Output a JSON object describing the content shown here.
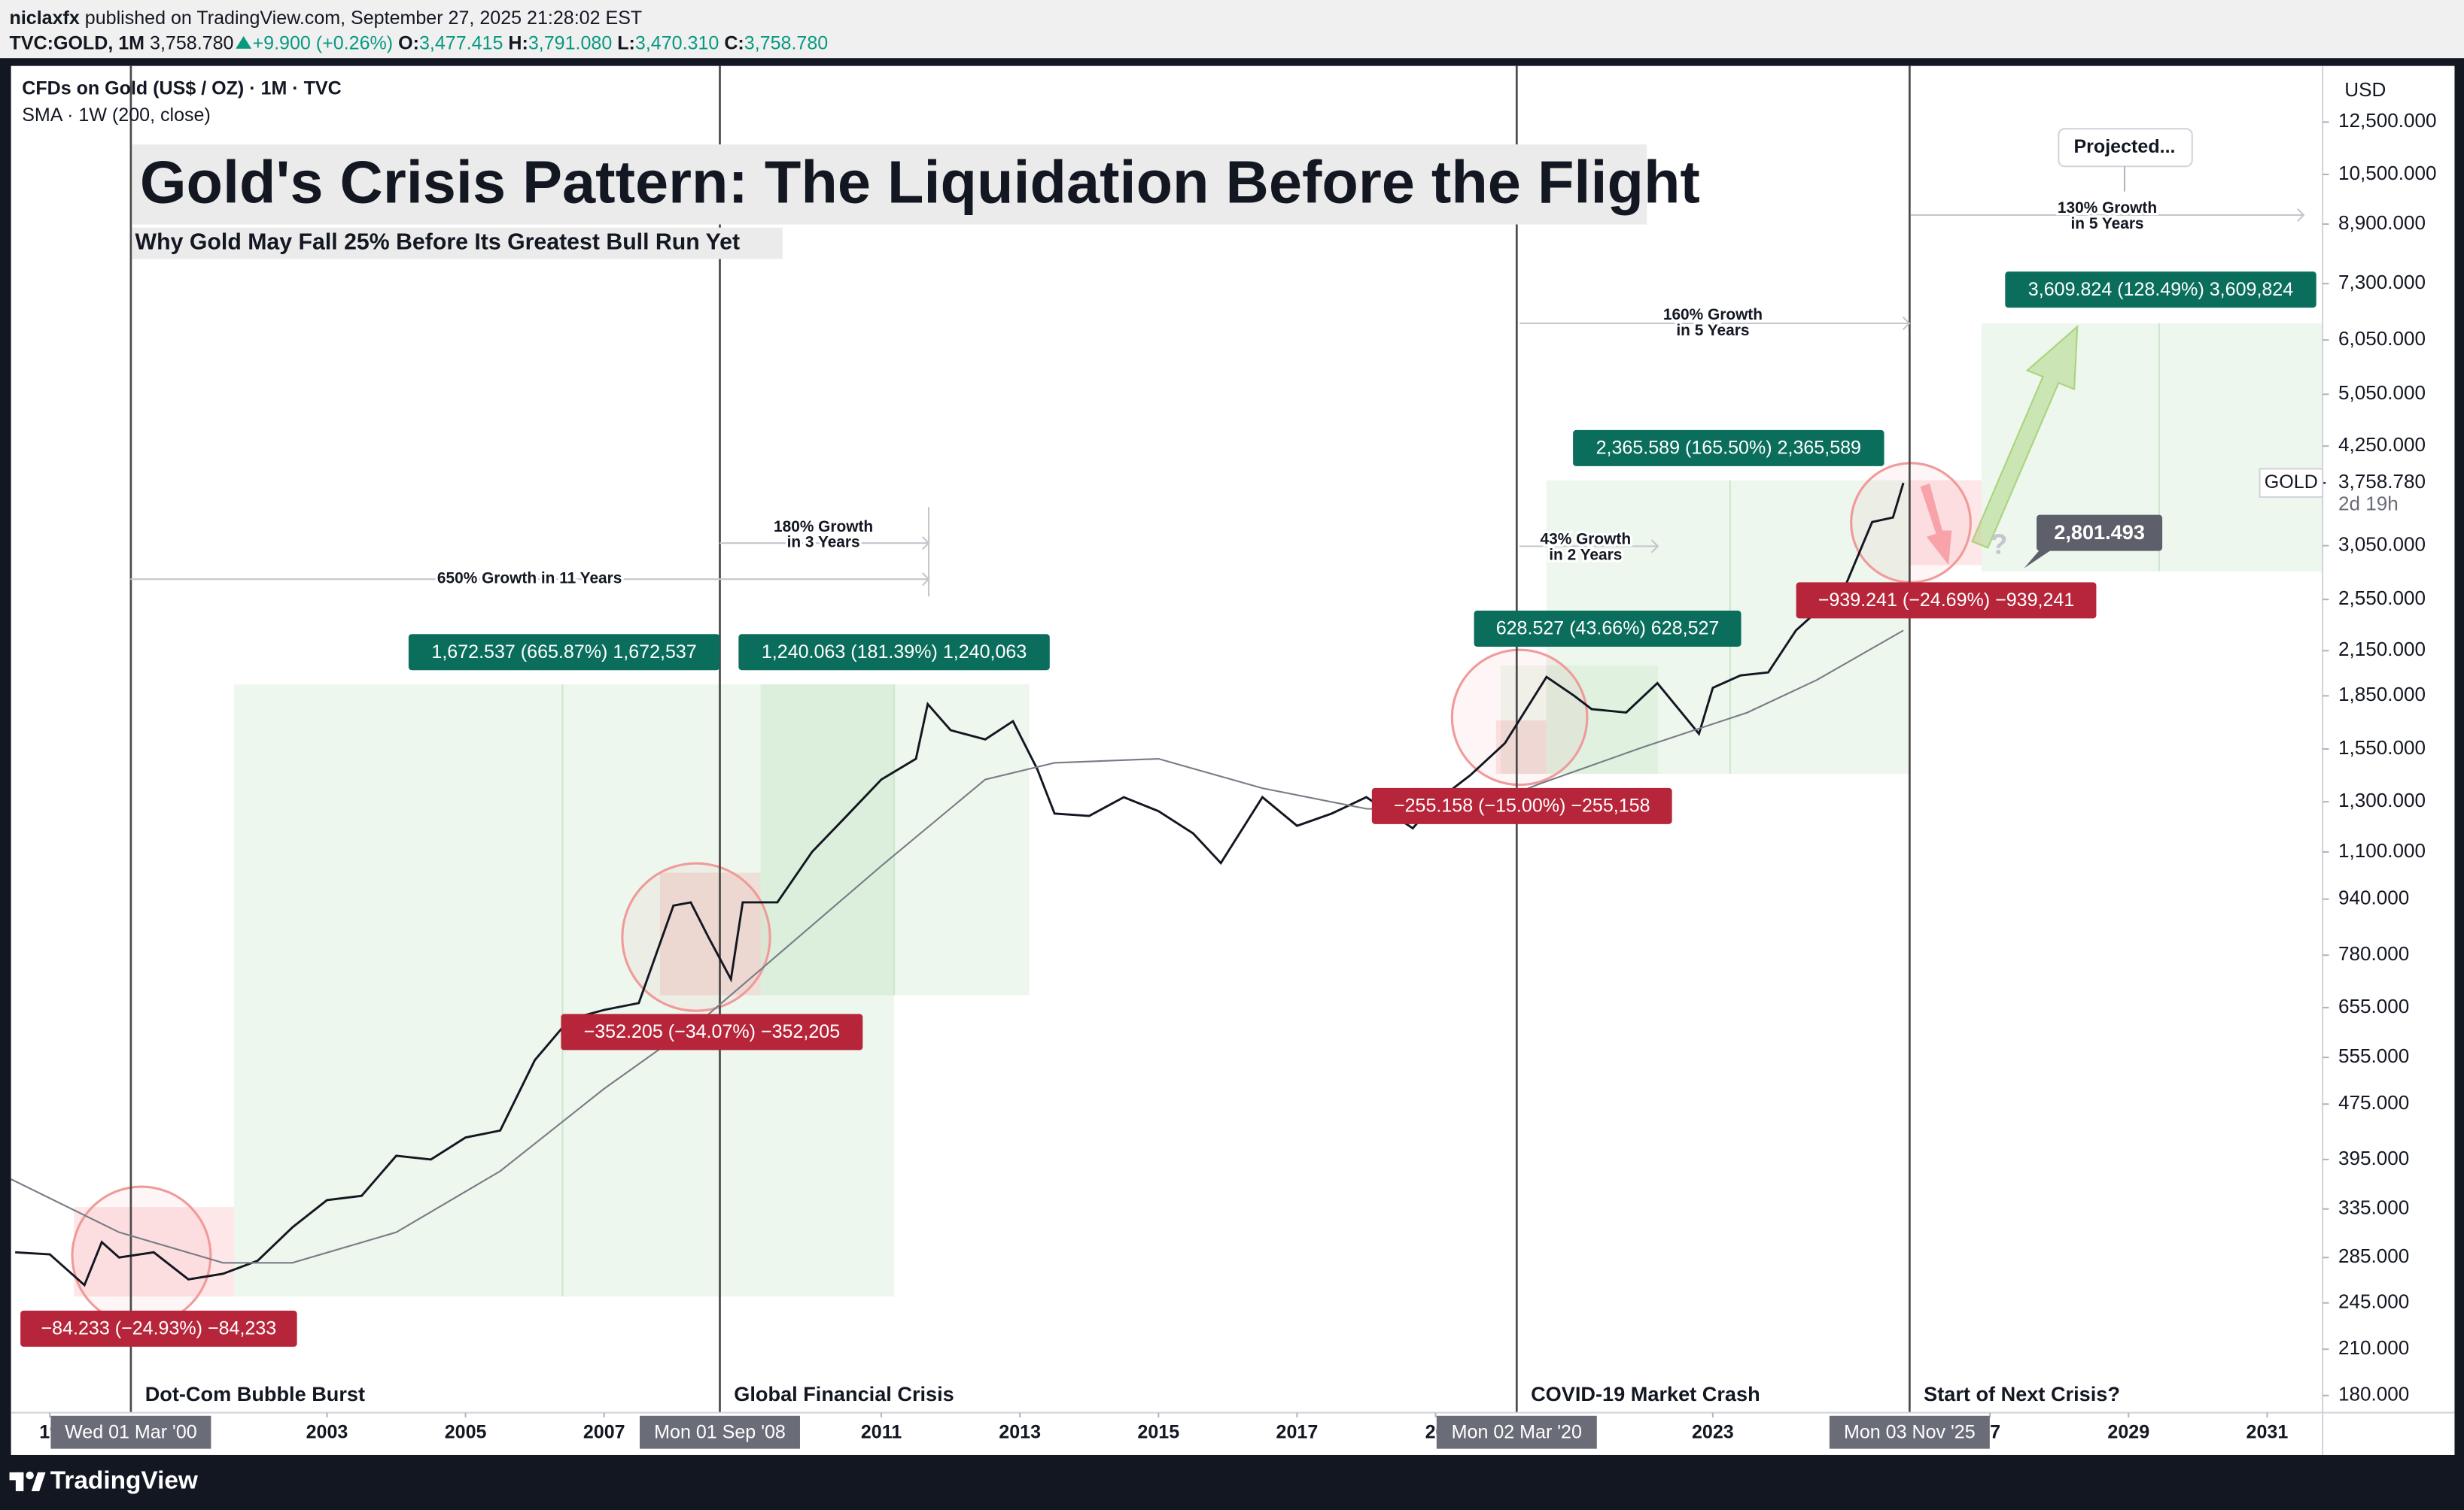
{
  "header": {
    "author": "niclaxfx",
    "published": "published on TradingView.com, September 27, 2025 21:28:02 EST",
    "symbol": "TVC:GOLD, 1M",
    "last": "3,758.780",
    "change": "+9.900 (+0.26%)",
    "open_label": "O:",
    "open": "3,477.415",
    "high_label": "H:",
    "high": "3,791.080",
    "low_label": "L:",
    "low": "3,470.310",
    "close_label": "C:",
    "close": "3,758.780"
  },
  "footer": {
    "brand": "TradingView"
  },
  "chart_data": {
    "type": "line",
    "title": "Gold's Crisis Pattern: The Liquidation Before the Flight",
    "subtitle": "Why Gold May Fall 25% Before Its Greatest Bull Run Yet",
    "instrument": "CFDs on Gold (US$ / OZ) · 1M · TVC",
    "currency": "USD",
    "log_scale": true,
    "grid": false,
    "xlim": [
      1998.44,
      2031.8
    ],
    "xticks": [
      {
        "value": 1999,
        "label": "19"
      },
      2003,
      2005,
      2007,
      2011,
      2013,
      2015,
      2017,
      {
        "value": 2019,
        "label": "20"
      },
      2023,
      {
        "value": 2027,
        "label": "27"
      },
      2029,
      2031
    ],
    "ylim": [
      170,
      15070
    ],
    "yticks": [
      {
        "value": 180,
        "label": "180.000"
      },
      {
        "value": 210,
        "label": "210.000"
      },
      {
        "value": 245,
        "label": "245.000"
      },
      {
        "value": 285,
        "label": "285.000"
      },
      {
        "value": 335,
        "label": "335.000"
      },
      {
        "value": 395,
        "label": "395.000"
      },
      {
        "value": 475,
        "label": "475.000"
      },
      {
        "value": 555,
        "label": "555.000"
      },
      {
        "value": 655,
        "label": "655.000"
      },
      {
        "value": 780,
        "label": "780.000"
      },
      {
        "value": 940,
        "label": "940.000"
      },
      {
        "value": 1100,
        "label": "1,100.000"
      },
      {
        "value": 1300,
        "label": "1,300.000"
      },
      {
        "value": 1550,
        "label": "1,550.000"
      },
      {
        "value": 1850,
        "label": "1,850.000"
      },
      {
        "value": 2150,
        "label": "2,150.000"
      },
      {
        "value": 2550,
        "label": "2,550.000"
      },
      {
        "value": 3050,
        "label": "3,050.000"
      },
      {
        "value": 4250,
        "label": "4,250.000"
      },
      {
        "value": 5050,
        "label": "5,050.000"
      },
      {
        "value": 6050,
        "label": "6,050.000"
      },
      {
        "value": 7300,
        "label": "7,300.000"
      },
      {
        "value": 8900,
        "label": "8,900.000"
      },
      {
        "value": 10500,
        "label": "10,500.000"
      },
      {
        "value": 12500,
        "label": "12,500.000"
      }
    ],
    "last_price": {
      "value": 3758.78,
      "label": "3,758.780"
    },
    "countdown": "2d 19h",
    "series": [
      {
        "name": "GOLD",
        "color": "#131722",
        "x": [
          1998.5,
          1999,
          1999.5,
          1999.75,
          2000,
          2000.5,
          2001,
          2001.5,
          2002,
          2002.5,
          2003,
          2003.5,
          2004,
          2004.5,
          2005,
          2005.5,
          2006,
          2006.5,
          2007,
          2007.5,
          2008,
          2008.25,
          2008.5,
          2008.83,
          2009,
          2009.5,
          2010,
          2010.5,
          2011,
          2011.5,
          2011.67,
          2012,
          2012.5,
          2012.9,
          2013.25,
          2013.5,
          2014,
          2014.5,
          2015,
          2015.5,
          2015.9,
          2016.5,
          2017,
          2017.5,
          2018,
          2018.67,
          2019,
          2019.5,
          2020,
          2020.6,
          2021,
          2021.25,
          2021.75,
          2022.2,
          2022.8,
          2023,
          2023.4,
          2023.8,
          2024.2,
          2024.6,
          2024.9,
          2025.3,
          2025.6,
          2025.75
        ],
        "values": [
          290,
          288,
          260,
          300,
          285,
          290,
          265,
          270,
          282,
          315,
          345,
          350,
          400,
          395,
          425,
          435,
          550,
          630,
          650,
          665,
          920,
          930,
          830,
          720,
          930,
          930,
          1100,
          1240,
          1400,
          1500,
          1800,
          1650,
          1600,
          1700,
          1450,
          1250,
          1240,
          1320,
          1260,
          1170,
          1060,
          1320,
          1200,
          1250,
          1320,
          1190,
          1300,
          1420,
          1580,
          1970,
          1850,
          1770,
          1750,
          1930,
          1630,
          1900,
          1980,
          2000,
          2300,
          2500,
          2650,
          3300,
          3350,
          3758.78
        ]
      },
      {
        "name": "SMA · 1W (200, close)",
        "color": "#787b86",
        "x": [
          1998.44,
          2000,
          2001.5,
          2002.5,
          2004,
          2005.5,
          2007,
          2008.5,
          2009.5,
          2011,
          2012.5,
          2013.5,
          2015,
          2016.5,
          2018,
          2019.5,
          2020.5,
          2022,
          2023.5,
          2024.5,
          2025.75
        ],
        "values": [
          370,
          310,
          280,
          280,
          310,
          380,
          500,
          640,
          780,
          1050,
          1400,
          1480,
          1500,
          1360,
          1270,
          1260,
          1380,
          1560,
          1750,
          1950,
          2300
        ]
      }
    ],
    "events": [
      {
        "date": "Wed 01 Mar '00",
        "x": 2000.17,
        "label": "Dot-Com Bubble Burst"
      },
      {
        "date": "Mon 01 Sep '08",
        "x": 2008.67,
        "label": "Global Financial Crisis"
      },
      {
        "date": "Mon 02 Mar '20",
        "x": 2020.17,
        "label": "COVID-19 Market Crash"
      },
      {
        "date": "Mon 03 Nov '25",
        "x": 2025.84,
        "label": "Start of Next Crisis?"
      }
    ],
    "gain_labels": [
      "1,672.537 (665.87%) 1,672,537",
      "1,240.063 (181.39%) 1,240,063",
      "628.527 (43.66%) 628,527",
      "2,365.589 (165.50%) 2,365,589",
      "3,609.824 (128.49%) 3,609,824"
    ],
    "loss_labels": [
      "−84.233 (−24.93%) −84,233",
      "−352.205 (−34.07%) −352,205",
      "−255.158 (−15.00%) −255,158",
      "−939.241 (−24.69%) −939,241"
    ],
    "growth_notes": [
      [
        "650% Growth in 11 Years"
      ],
      [
        "180% Growth",
        "in 3 Years"
      ],
      [
        "43% Growth",
        "in 2 Years"
      ],
      [
        "160% Growth",
        "in 5 Years"
      ],
      [
        "130% Growth",
        "in 5 Years"
      ]
    ],
    "projected": "Projected...",
    "projection_mark": "?",
    "projected_price": "2,801.493"
  }
}
